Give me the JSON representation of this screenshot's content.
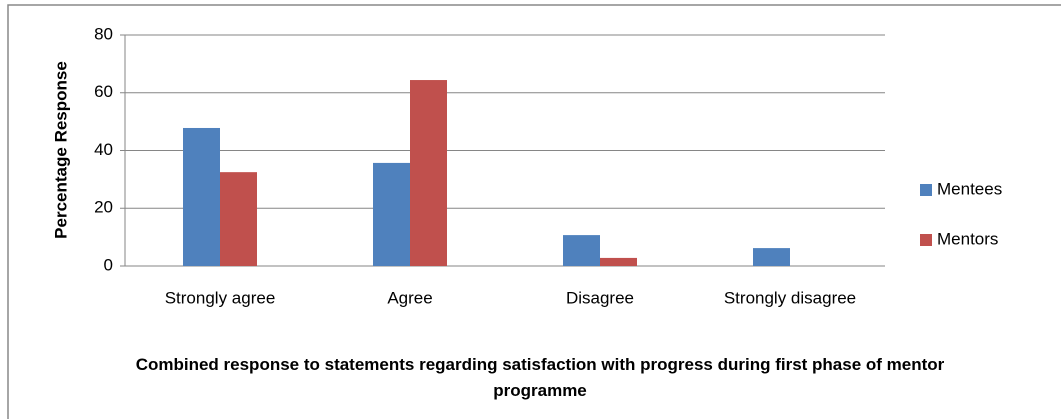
{
  "chart_data": {
    "type": "bar",
    "xlabel": "Combined response to statements regarding satisfaction with progress during first phase of mentor programme",
    "ylabel": "Percentage Response",
    "categories": [
      "Strongly agree",
      "Agree",
      "Disagree",
      "Strongly disagree"
    ],
    "series": [
      {
        "name": "Mentees",
        "color": "#4f81bd",
        "values": [
          47.8,
          35.7,
          10.7,
          6.2
        ]
      },
      {
        "name": "Mentors",
        "color": "#c0504d",
        "values": [
          32.5,
          64.4,
          2.8,
          0
        ]
      }
    ],
    "ylim": [
      0,
      80
    ],
    "yticks": [
      0,
      20,
      40,
      60,
      80
    ],
    "grid": true,
    "legend": "right"
  }
}
